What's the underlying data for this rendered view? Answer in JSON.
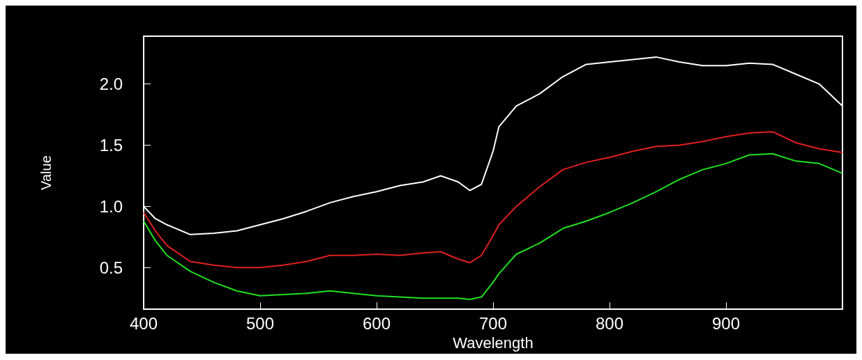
{
  "chart_data": {
    "type": "line",
    "xlabel": "Wavelength",
    "ylabel": "Value",
    "x": [
      400,
      410,
      420,
      440,
      460,
      480,
      500,
      520,
      540,
      560,
      580,
      600,
      620,
      640,
      655,
      670,
      680,
      690,
      700,
      705,
      720,
      740,
      760,
      780,
      800,
      820,
      840,
      860,
      880,
      900,
      920,
      940,
      960,
      980,
      1000
    ],
    "series": [
      {
        "color": "#ffffff",
        "values": [
          1.0,
          0.9,
          0.85,
          0.77,
          0.78,
          0.8,
          0.85,
          0.9,
          0.96,
          1.03,
          1.08,
          1.12,
          1.17,
          1.2,
          1.25,
          1.2,
          1.13,
          1.18,
          1.45,
          1.65,
          1.82,
          1.92,
          2.06,
          2.16,
          2.18,
          2.2,
          2.22,
          2.18,
          2.15,
          2.15,
          2.17,
          2.16,
          2.08,
          2.0,
          1.82
        ]
      },
      {
        "color": "#e02020",
        "values": [
          0.95,
          0.8,
          0.68,
          0.55,
          0.52,
          0.5,
          0.5,
          0.52,
          0.55,
          0.6,
          0.6,
          0.61,
          0.6,
          0.62,
          0.63,
          0.57,
          0.54,
          0.6,
          0.76,
          0.85,
          1.0,
          1.16,
          1.3,
          1.36,
          1.4,
          1.45,
          1.49,
          1.5,
          1.53,
          1.57,
          1.6,
          1.61,
          1.52,
          1.47,
          1.44
        ]
      },
      {
        "color": "#20e020",
        "values": [
          0.88,
          0.72,
          0.6,
          0.47,
          0.38,
          0.31,
          0.27,
          0.28,
          0.29,
          0.31,
          0.29,
          0.27,
          0.26,
          0.25,
          0.25,
          0.25,
          0.24,
          0.26,
          0.38,
          0.45,
          0.61,
          0.7,
          0.82,
          0.88,
          0.95,
          1.03,
          1.12,
          1.22,
          1.3,
          1.35,
          1.42,
          1.43,
          1.37,
          1.35,
          1.27
        ]
      }
    ],
    "xlim": [
      400,
      1000
    ],
    "xticks": [
      400,
      500,
      600,
      700,
      800,
      900
    ],
    "ylim": [
      0.16,
      2.39
    ],
    "yticks": [
      {
        "value": 0.5,
        "label": "0.5"
      },
      {
        "value": 1,
        "label": "1.0"
      },
      {
        "value": 1.5,
        "label": "1.5"
      },
      {
        "value": 2,
        "label": "2.0"
      }
    ],
    "grid": false,
    "marker": "none",
    "line_style": "solid"
  }
}
